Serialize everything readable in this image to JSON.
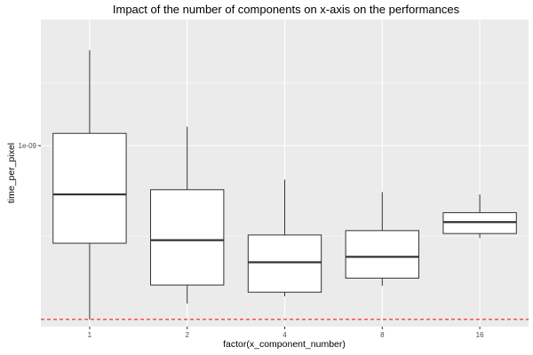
{
  "chart_data": {
    "type": "box",
    "title": "Impact of the number of components on x-axis on the performances",
    "xlabel": "factor(x_component_number)",
    "ylabel": "time_per_pixel",
    "y_scale": "log10",
    "ylim": [
      3.7e-10,
      2e-09
    ],
    "y_ticks": [
      {
        "value": 1e-09,
        "label": "1e-09"
      }
    ],
    "categories": [
      "1",
      "2",
      "4",
      "8",
      "16"
    ],
    "boxes": [
      {
        "category": "1",
        "whisker_low": 3.85e-10,
        "q1": 5.85e-10,
        "median": 7.65e-10,
        "q3": 1.07e-09,
        "whisker_high": 1.69e-09
      },
      {
        "category": "2",
        "whisker_low": 4.2e-10,
        "q1": 4.65e-10,
        "median": 5.95e-10,
        "q3": 7.85e-10,
        "whisker_high": 1.11e-09
      },
      {
        "category": "4",
        "whisker_low": 4.37e-10,
        "q1": 4.47e-10,
        "median": 5.27e-10,
        "q3": 6.12e-10,
        "whisker_high": 8.3e-10
      },
      {
        "category": "8",
        "whisker_low": 4.63e-10,
        "q1": 4.83e-10,
        "median": 5.43e-10,
        "q3": 6.27e-10,
        "whisker_high": 7.75e-10
      },
      {
        "category": "16",
        "whisker_low": 6.02e-10,
        "q1": 6.17e-10,
        "median": 6.57e-10,
        "q3": 6.92e-10,
        "whisker_high": 7.65e-10
      }
    ],
    "reference_line": {
      "y": 3.85e-10,
      "style": "dashed",
      "color": "#ff0000"
    },
    "grid": true,
    "legend": "none",
    "colors": {
      "panel_background": "#ebebeb",
      "grid": "#ffffff",
      "box_fill": "#ffffff",
      "box_stroke": "#333333",
      "reference_line": "#ff0000"
    }
  }
}
